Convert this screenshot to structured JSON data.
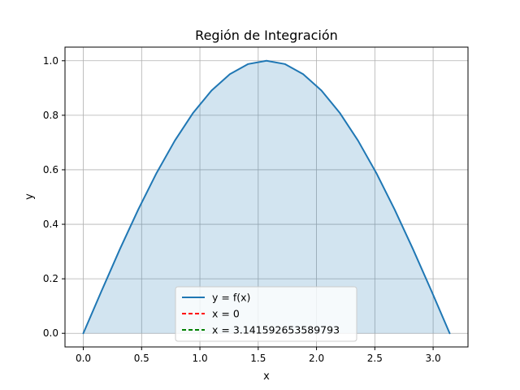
{
  "chart_data": {
    "type": "area",
    "title": "Región de Integración",
    "xlabel": "x",
    "ylabel": "y",
    "xlim": [
      -0.157,
      3.299
    ],
    "ylim": [
      -0.05,
      1.05
    ],
    "xticks": [
      0.0,
      0.5,
      1.0,
      1.5,
      2.0,
      2.5,
      3.0
    ],
    "xtick_labels": [
      "0.0",
      "0.5",
      "1.0",
      "1.5",
      "2.0",
      "2.5",
      "3.0"
    ],
    "yticks": [
      0.0,
      0.2,
      0.4,
      0.6,
      0.8,
      1.0
    ],
    "ytick_labels": [
      "0.0",
      "0.2",
      "0.4",
      "0.6",
      "0.8",
      "1.0"
    ],
    "grid": true,
    "legend_placement": "lower center",
    "series": [
      {
        "name": "y = f(x)",
        "color": "#1f77b4",
        "fill_color": "#1f77b4",
        "fill_opacity": 0.2,
        "x": [
          0.0,
          0.157,
          0.314,
          0.471,
          0.628,
          0.785,
          0.942,
          1.1,
          1.257,
          1.414,
          1.571,
          1.728,
          1.885,
          2.042,
          2.199,
          2.356,
          2.513,
          2.67,
          2.827,
          2.985,
          3.142
        ],
        "y": [
          0.0,
          0.156,
          0.309,
          0.454,
          0.588,
          0.707,
          0.809,
          0.891,
          0.951,
          0.988,
          1.0,
          0.988,
          0.951,
          0.891,
          0.809,
          0.707,
          0.588,
          0.454,
          0.309,
          0.156,
          0.0
        ]
      }
    ],
    "vlines": [
      {
        "name": "x = 0",
        "x": 0,
        "color": "#ff0000",
        "style": "dashed"
      },
      {
        "name": "x = 3.141592653589793",
        "x": 3.141592653589793,
        "color": "#008000",
        "style": "dashed"
      }
    ]
  }
}
